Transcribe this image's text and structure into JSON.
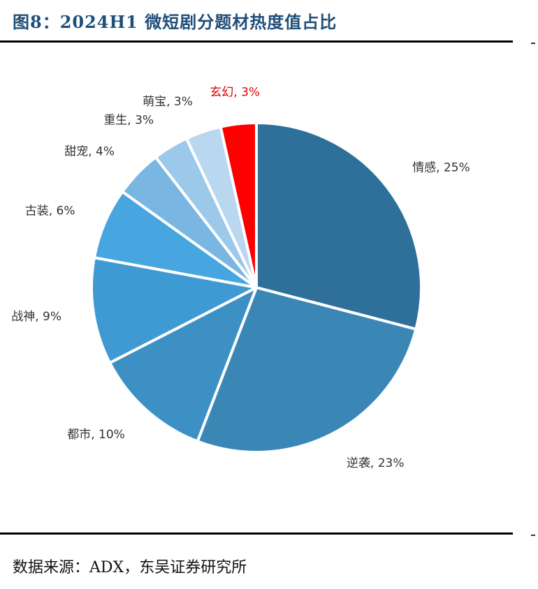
{
  "header": {
    "title": "图8：2024H1 微短剧分题材热度值占比"
  },
  "footer": {
    "source": "数据来源：ADX，东吴证券研究所"
  },
  "chart_data": {
    "type": "pie",
    "title": "2024H1 微短剧分题材热度值占比",
    "start_angle_deg": 0,
    "direction": "clockwise",
    "slices": [
      {
        "label": "情感",
        "value": 25,
        "display": "情感, 25%",
        "color": "#2e7099",
        "label_color": "#333333"
      },
      {
        "label": "逆袭",
        "value": 23,
        "display": "逆袭, 23%",
        "color": "#3a87b5",
        "label_color": "#333333"
      },
      {
        "label": "都市",
        "value": 10,
        "display": "都市, 10%",
        "color": "#3d90c4",
        "label_color": "#333333"
      },
      {
        "label": "战神",
        "value": 9,
        "display": "战神, 9%",
        "color": "#3f9ad3",
        "label_color": "#333333"
      },
      {
        "label": "古装",
        "value": 6,
        "display": "古装, 6%",
        "color": "#47a6df",
        "label_color": "#333333"
      },
      {
        "label": "甜宠",
        "value": 4,
        "display": "甜宠, 4%",
        "color": "#7ab6e2",
        "label_color": "#333333"
      },
      {
        "label": "重生",
        "value": 3,
        "display": "重生, 3%",
        "color": "#9cc8ea",
        "label_color": "#333333"
      },
      {
        "label": "萌宝",
        "value": 3,
        "display": "萌宝, 3%",
        "color": "#bad7f0",
        "label_color": "#333333"
      },
      {
        "label": "玄幻",
        "value": 3,
        "display": "玄幻, 3%",
        "color": "#ff0000",
        "label_color": "#e00000"
      }
    ],
    "data_labels": "outside"
  }
}
